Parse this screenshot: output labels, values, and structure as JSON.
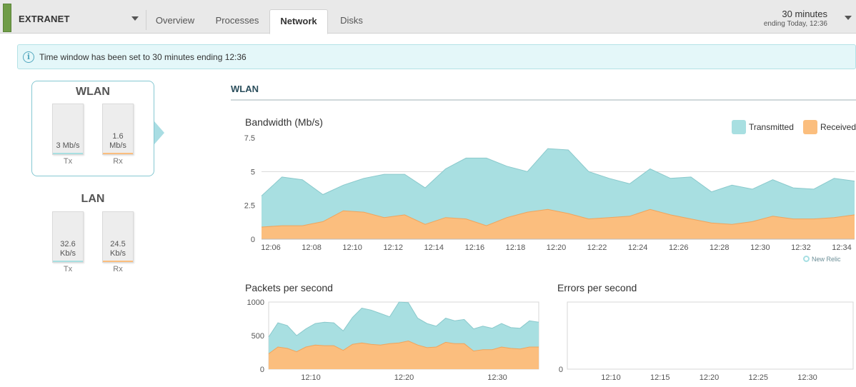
{
  "header": {
    "server_name": "EXTRANET",
    "tabs": [
      {
        "label": "Overview"
      },
      {
        "label": "Processes"
      },
      {
        "label": "Network"
      },
      {
        "label": "Disks"
      }
    ],
    "active_tab": "Network",
    "time_window": {
      "main": "30 minutes",
      "sub": "ending Today, 12:36"
    }
  },
  "banner": {
    "text": "Time window has been set to 30 minutes ending 12:36",
    "icon": "info-icon"
  },
  "interfaces": [
    {
      "name": "WLAN",
      "selected": true,
      "tx": {
        "value": "3 Mb/s",
        "label": "Tx"
      },
      "rx": {
        "value": "1.6\nMb/s",
        "label": "Rx"
      }
    },
    {
      "name": "LAN",
      "selected": false,
      "tx": {
        "value": "32.6\nKb/s",
        "label": "Tx"
      },
      "rx": {
        "value": "24.5\nKb/s",
        "label": "Rx"
      }
    }
  ],
  "section": {
    "title": "WLAN"
  },
  "colors": {
    "transmitted_fill": "#a8dfe1",
    "transmitted_line": "#8ac9cc",
    "received_fill": "#fbbe7e",
    "received_line": "#f0a45c",
    "accent_green": "#6f9c47"
  },
  "watermark": "New Relic",
  "chart_data": [
    {
      "type": "area",
      "title": "Bandwidth (Mb/s)",
      "legend": {
        "placement": "top-right"
      },
      "legend_labels": [
        "Transmitted",
        "Received"
      ],
      "x_ticks": [
        "12:06",
        "12:08",
        "12:10",
        "12:12",
        "12:14",
        "12:16",
        "12:18",
        "12:20",
        "12:22",
        "12:24",
        "12:26",
        "12:28",
        "12:30",
        "12:32",
        "12:34"
      ],
      "y_ticks": [
        "0",
        "2.5",
        "5",
        "7.5"
      ],
      "ylim": [
        0,
        7.5
      ],
      "x": [
        "12:06",
        "12:07",
        "12:08",
        "12:09",
        "12:10",
        "12:11",
        "12:12",
        "12:13",
        "12:14",
        "12:15",
        "12:16",
        "12:17",
        "12:18",
        "12:19",
        "12:20",
        "12:21",
        "12:22",
        "12:23",
        "12:24",
        "12:25",
        "12:26",
        "12:27",
        "12:28",
        "12:29",
        "12:30",
        "12:31",
        "12:32",
        "12:33",
        "12:34",
        "12:35"
      ],
      "series": [
        {
          "name": "Transmitted",
          "values": [
            3.2,
            4.6,
            4.4,
            3.3,
            4.0,
            4.5,
            4.8,
            4.8,
            3.8,
            5.2,
            6.0,
            6.0,
            5.4,
            5.0,
            6.7,
            6.6,
            5.0,
            4.5,
            4.1,
            5.2,
            4.5,
            4.6,
            3.5,
            4.0,
            3.7,
            4.4,
            3.8,
            3.7,
            4.5,
            4.3
          ]
        },
        {
          "name": "Received",
          "values": [
            0.9,
            1.0,
            1.0,
            1.3,
            2.1,
            2.0,
            1.6,
            1.8,
            1.1,
            1.6,
            1.5,
            1.0,
            1.6,
            2.0,
            2.2,
            1.9,
            1.5,
            1.6,
            1.7,
            2.2,
            1.8,
            1.5,
            1.2,
            1.1,
            1.3,
            1.7,
            1.5,
            1.5,
            1.6,
            1.8
          ]
        }
      ],
      "grid": true
    },
    {
      "type": "area",
      "title": "Packets per second",
      "x_ticks": [
        "12:10",
        "12:20",
        "12:30"
      ],
      "y_ticks": [
        "0",
        "500",
        "1000"
      ],
      "ylim": [
        0,
        1000
      ],
      "series": [
        {
          "name": "Transmitted",
          "values": [
            480,
            690,
            650,
            500,
            600,
            680,
            700,
            690,
            570,
            770,
            910,
            880,
            830,
            780,
            1000,
            990,
            760,
            680,
            640,
            760,
            720,
            740,
            600,
            640,
            610,
            680,
            620,
            610,
            720,
            700
          ]
        },
        {
          "name": "Received",
          "values": [
            230,
            330,
            310,
            260,
            330,
            360,
            350,
            350,
            280,
            370,
            390,
            370,
            360,
            380,
            390,
            420,
            360,
            320,
            330,
            400,
            380,
            380,
            270,
            290,
            290,
            330,
            310,
            300,
            330,
            330
          ]
        }
      ],
      "grid": false
    },
    {
      "type": "area",
      "title": "Errors per second",
      "x_ticks": [
        "12:10",
        "12:15",
        "12:20",
        "12:25",
        "12:30"
      ],
      "y_ticks": [
        "0"
      ],
      "series": [],
      "grid": false
    }
  ]
}
